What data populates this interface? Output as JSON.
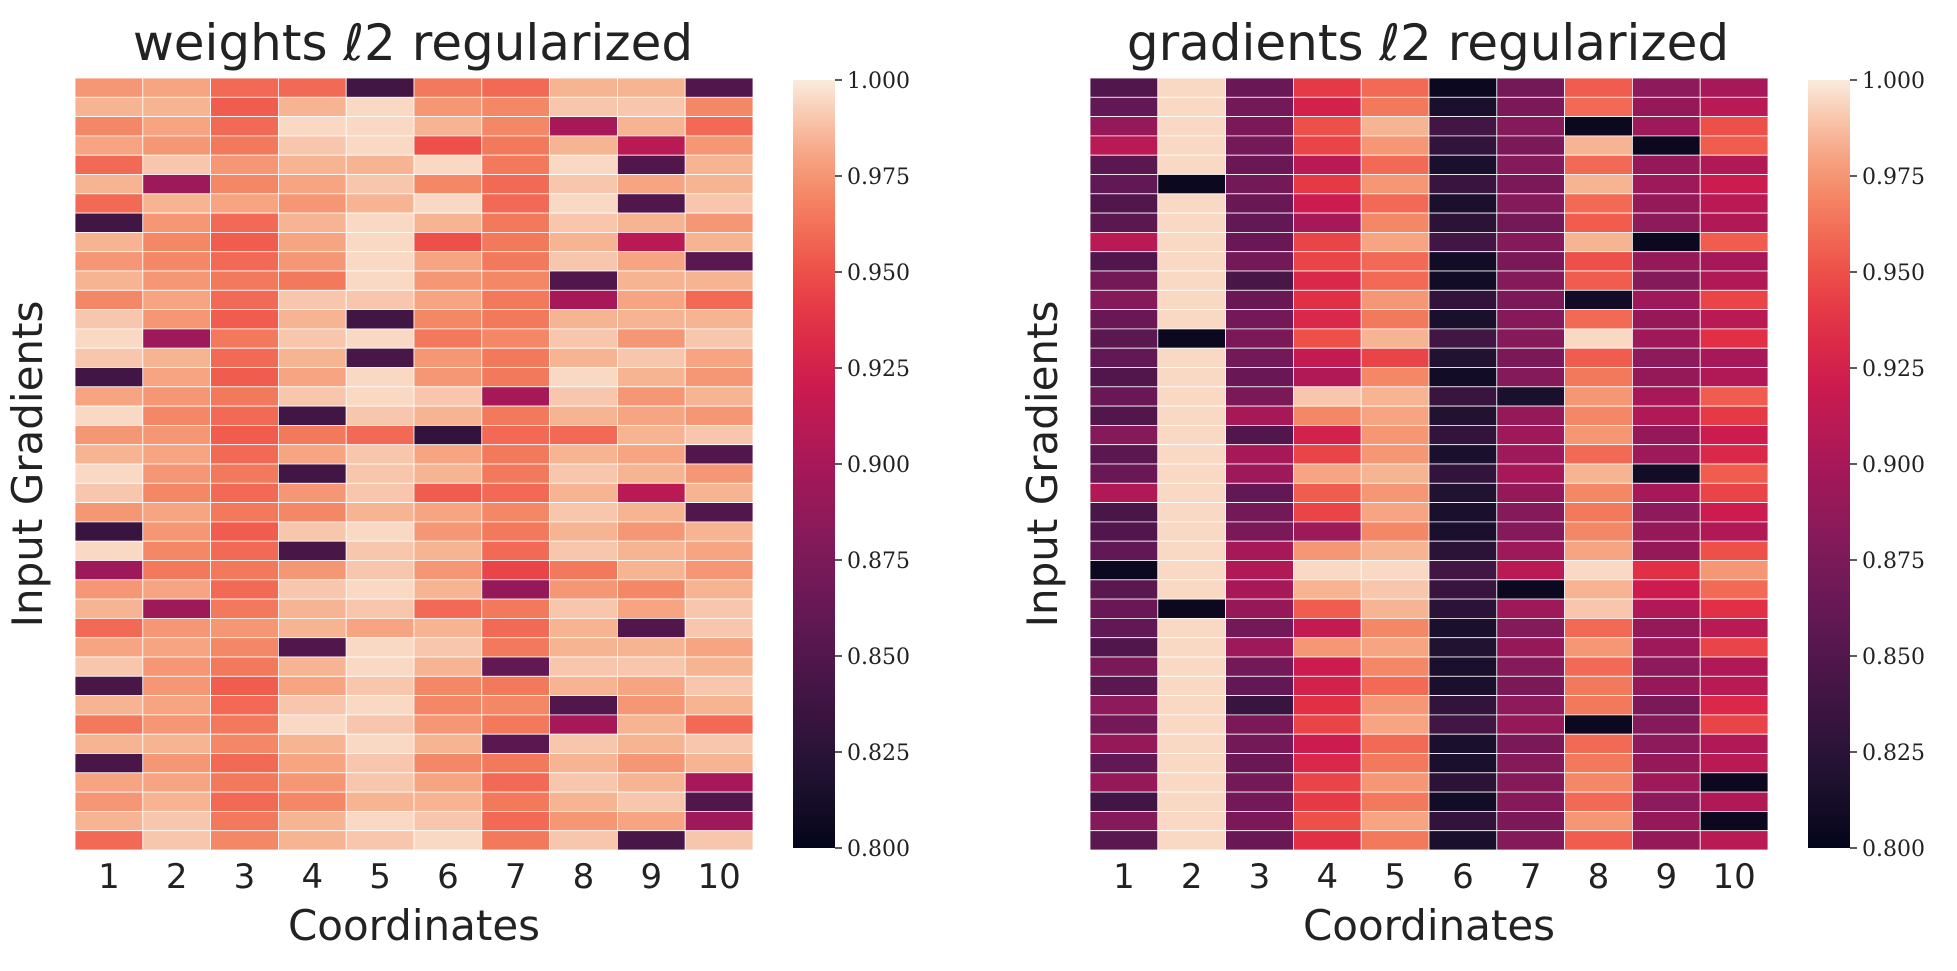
{
  "chart_data": [
    {
      "type": "heatmap",
      "title": "weights ℓ2 regularized",
      "xlabel": "Coordinates",
      "ylabel": "Input Gradients",
      "x_tick_labels": [
        "1",
        "2",
        "3",
        "4",
        "5",
        "6",
        "7",
        "8",
        "9",
        "10"
      ],
      "colorbar": {
        "min": 0.8,
        "max": 1.0,
        "tick_labels": [
          "1.000",
          "0.975",
          "0.950",
          "0.925",
          "0.900",
          "0.875",
          "0.850",
          "0.825",
          "0.800"
        ]
      },
      "colormap": "rocket",
      "values": [
        [
          0.975,
          0.98,
          0.96,
          0.96,
          0.84,
          0.965,
          0.96,
          0.985,
          0.985,
          0.85
        ],
        [
          0.985,
          0.985,
          0.955,
          0.985,
          0.995,
          0.975,
          0.97,
          0.99,
          0.99,
          0.97
        ],
        [
          0.97,
          0.98,
          0.96,
          0.995,
          0.995,
          0.985,
          0.97,
          0.9,
          0.985,
          0.96
        ],
        [
          0.98,
          0.975,
          0.965,
          0.99,
          0.995,
          0.95,
          0.965,
          0.985,
          0.91,
          0.975
        ],
        [
          0.96,
          0.99,
          0.975,
          0.985,
          0.985,
          0.995,
          0.965,
          0.995,
          0.85,
          0.985
        ],
        [
          0.985,
          0.895,
          0.97,
          0.98,
          0.99,
          0.97,
          0.96,
          0.99,
          0.98,
          0.985
        ],
        [
          0.96,
          0.985,
          0.98,
          0.975,
          0.985,
          0.995,
          0.96,
          0.995,
          0.85,
          0.99
        ],
        [
          0.84,
          0.975,
          0.96,
          0.985,
          0.995,
          0.985,
          0.965,
          0.99,
          0.985,
          0.975
        ],
        [
          0.985,
          0.97,
          0.955,
          0.98,
          0.995,
          0.95,
          0.965,
          0.985,
          0.91,
          0.985
        ],
        [
          0.975,
          0.97,
          0.96,
          0.975,
          0.995,
          0.98,
          0.965,
          0.99,
          0.98,
          0.855
        ],
        [
          0.985,
          0.975,
          0.965,
          0.965,
          0.995,
          0.975,
          0.97,
          0.85,
          0.985,
          0.985
        ],
        [
          0.97,
          0.98,
          0.96,
          0.99,
          0.99,
          0.98,
          0.965,
          0.9,
          0.98,
          0.96
        ],
        [
          0.99,
          0.975,
          0.955,
          0.985,
          0.84,
          0.97,
          0.965,
          0.985,
          0.985,
          0.985
        ],
        [
          0.995,
          0.895,
          0.965,
          0.99,
          0.995,
          0.965,
          0.97,
          0.99,
          0.975,
          0.99
        ],
        [
          0.99,
          0.985,
          0.96,
          0.985,
          0.845,
          0.975,
          0.965,
          0.985,
          0.99,
          0.98
        ],
        [
          0.84,
          0.98,
          0.955,
          0.98,
          0.995,
          0.975,
          0.965,
          0.995,
          0.985,
          0.975
        ],
        [
          0.98,
          0.975,
          0.965,
          0.99,
          0.995,
          0.99,
          0.9,
          0.99,
          0.975,
          0.985
        ],
        [
          0.995,
          0.97,
          0.96,
          0.84,
          0.99,
          0.985,
          0.965,
          0.985,
          0.98,
          0.975
        ],
        [
          0.975,
          0.975,
          0.955,
          0.965,
          0.96,
          0.83,
          0.96,
          0.96,
          0.985,
          0.99
        ],
        [
          0.985,
          0.98,
          0.96,
          0.98,
          0.99,
          0.98,
          0.965,
          0.985,
          0.98,
          0.85
        ],
        [
          0.995,
          0.975,
          0.965,
          0.84,
          0.99,
          0.985,
          0.965,
          0.99,
          0.985,
          0.975
        ],
        [
          0.99,
          0.97,
          0.96,
          0.975,
          0.99,
          0.955,
          0.96,
          0.985,
          0.91,
          0.985
        ],
        [
          0.975,
          0.98,
          0.965,
          0.97,
          0.985,
          0.98,
          0.97,
          0.99,
          0.985,
          0.85
        ],
        [
          0.835,
          0.975,
          0.955,
          0.99,
          0.995,
          0.975,
          0.965,
          0.985,
          0.975,
          0.985
        ],
        [
          0.995,
          0.97,
          0.96,
          0.845,
          0.99,
          0.985,
          0.96,
          0.99,
          0.985,
          0.98
        ],
        [
          0.895,
          0.965,
          0.965,
          0.975,
          0.99,
          0.975,
          0.945,
          0.965,
          0.985,
          0.975
        ],
        [
          0.975,
          0.98,
          0.96,
          0.99,
          0.995,
          0.985,
          0.89,
          0.975,
          0.97,
          0.985
        ],
        [
          0.985,
          0.895,
          0.965,
          0.985,
          0.99,
          0.96,
          0.965,
          0.99,
          0.98,
          0.99
        ],
        [
          0.96,
          0.975,
          0.975,
          0.985,
          0.98,
          0.985,
          0.96,
          0.985,
          0.85,
          0.99
        ],
        [
          0.98,
          0.98,
          0.97,
          0.85,
          0.995,
          0.99,
          0.965,
          0.985,
          0.985,
          0.98
        ],
        [
          0.99,
          0.975,
          0.965,
          0.985,
          0.995,
          0.985,
          0.86,
          0.99,
          0.99,
          0.985
        ],
        [
          0.845,
          0.975,
          0.955,
          0.98,
          0.99,
          0.97,
          0.965,
          0.985,
          0.98,
          0.99
        ],
        [
          0.985,
          0.98,
          0.96,
          0.99,
          0.995,
          0.97,
          0.97,
          0.85,
          0.975,
          0.985
        ],
        [
          0.965,
          0.975,
          0.965,
          0.995,
          0.99,
          0.975,
          0.965,
          0.9,
          0.985,
          0.96
        ],
        [
          0.985,
          0.985,
          0.97,
          0.985,
          0.995,
          0.985,
          0.855,
          0.99,
          0.985,
          0.99
        ],
        [
          0.845,
          0.975,
          0.96,
          0.98,
          0.99,
          0.97,
          0.965,
          0.985,
          0.975,
          0.985
        ],
        [
          0.98,
          0.98,
          0.965,
          0.975,
          0.99,
          0.98,
          0.96,
          0.99,
          0.985,
          0.9
        ],
        [
          0.975,
          0.985,
          0.96,
          0.97,
          0.985,
          0.985,
          0.965,
          0.985,
          0.99,
          0.85
        ],
        [
          0.985,
          0.99,
          0.965,
          0.985,
          0.995,
          0.99,
          0.96,
          0.975,
          0.98,
          0.895
        ],
        [
          0.96,
          0.99,
          0.97,
          0.985,
          0.99,
          0.995,
          0.965,
          0.99,
          0.845,
          0.99
        ]
      ]
    },
    {
      "type": "heatmap",
      "title": "gradients ℓ2 regularized",
      "xlabel": "Coordinates",
      "ylabel": "Input Gradients",
      "x_tick_labels": [
        "1",
        "2",
        "3",
        "4",
        "5",
        "6",
        "7",
        "8",
        "9",
        "10"
      ],
      "colorbar": {
        "min": 0.8,
        "max": 1.0,
        "tick_labels": [
          "1.000",
          "0.975",
          "0.950",
          "0.925",
          "0.900",
          "0.875",
          "0.850",
          "0.825",
          "0.800"
        ]
      },
      "colormap": "rocket",
      "values": [
        [
          0.85,
          0.995,
          0.865,
          0.94,
          0.96,
          0.805,
          0.87,
          0.955,
          0.885,
          0.9
        ],
        [
          0.86,
          0.995,
          0.87,
          0.925,
          0.965,
          0.815,
          0.875,
          0.96,
          0.89,
          0.91
        ],
        [
          0.89,
          0.995,
          0.875,
          0.95,
          0.985,
          0.84,
          0.88,
          0.805,
          0.895,
          0.95
        ],
        [
          0.91,
          0.995,
          0.87,
          0.945,
          0.975,
          0.83,
          0.875,
          0.985,
          0.805,
          0.955
        ],
        [
          0.855,
          0.995,
          0.865,
          0.91,
          0.96,
          0.815,
          0.88,
          0.96,
          0.89,
          0.905
        ],
        [
          0.86,
          0.805,
          0.87,
          0.94,
          0.975,
          0.835,
          0.875,
          0.985,
          0.895,
          0.92
        ],
        [
          0.85,
          0.995,
          0.865,
          0.92,
          0.96,
          0.815,
          0.88,
          0.96,
          0.89,
          0.91
        ],
        [
          0.855,
          0.995,
          0.86,
          0.9,
          0.97,
          0.825,
          0.87,
          0.955,
          0.885,
          0.905
        ],
        [
          0.91,
          0.995,
          0.865,
          0.945,
          0.98,
          0.84,
          0.88,
          0.985,
          0.805,
          0.955
        ],
        [
          0.85,
          0.995,
          0.87,
          0.945,
          0.96,
          0.81,
          0.875,
          0.95,
          0.89,
          0.9
        ],
        [
          0.87,
          0.995,
          0.845,
          0.93,
          0.96,
          0.81,
          0.88,
          0.955,
          0.88,
          0.905
        ],
        [
          0.88,
          0.995,
          0.865,
          0.935,
          0.975,
          0.83,
          0.875,
          0.81,
          0.895,
          0.945
        ],
        [
          0.865,
          0.995,
          0.87,
          0.93,
          0.965,
          0.815,
          0.88,
          0.96,
          0.89,
          0.91
        ],
        [
          0.855,
          0.805,
          0.875,
          0.95,
          0.985,
          0.84,
          0.88,
          0.995,
          0.895,
          0.935
        ],
        [
          0.86,
          0.995,
          0.87,
          0.915,
          0.945,
          0.82,
          0.875,
          0.955,
          0.885,
          0.9
        ],
        [
          0.85,
          0.995,
          0.865,
          0.905,
          0.97,
          0.81,
          0.88,
          0.965,
          0.89,
          0.905
        ],
        [
          0.865,
          0.995,
          0.875,
          0.99,
          0.985,
          0.835,
          0.815,
          0.975,
          0.9,
          0.955
        ],
        [
          0.85,
          0.995,
          0.9,
          0.97,
          0.98,
          0.82,
          0.89,
          0.97,
          0.905,
          0.94
        ],
        [
          0.88,
          0.995,
          0.85,
          0.925,
          0.975,
          0.83,
          0.895,
          0.975,
          0.89,
          0.92
        ],
        [
          0.855,
          0.995,
          0.9,
          0.945,
          0.975,
          0.815,
          0.895,
          0.96,
          0.895,
          0.93
        ],
        [
          0.865,
          0.995,
          0.895,
          0.98,
          0.985,
          0.83,
          0.9,
          0.985,
          0.81,
          0.955
        ],
        [
          0.905,
          0.995,
          0.86,
          0.955,
          0.975,
          0.82,
          0.89,
          0.97,
          0.9,
          0.945
        ],
        [
          0.845,
          0.995,
          0.87,
          0.945,
          0.98,
          0.815,
          0.88,
          0.965,
          0.885,
          0.92
        ],
        [
          0.85,
          0.995,
          0.875,
          0.895,
          0.97,
          0.815,
          0.88,
          0.97,
          0.89,
          0.905
        ],
        [
          0.86,
          0.995,
          0.9,
          0.975,
          0.985,
          0.825,
          0.895,
          0.98,
          0.89,
          0.95
        ],
        [
          0.805,
          0.995,
          0.905,
          0.995,
          0.995,
          0.84,
          0.91,
          0.995,
          0.935,
          0.975
        ],
        [
          0.855,
          0.995,
          0.9,
          0.985,
          0.99,
          0.835,
          0.805,
          0.985,
          0.92,
          0.96
        ],
        [
          0.865,
          0.805,
          0.89,
          0.955,
          0.985,
          0.825,
          0.895,
          0.99,
          0.905,
          0.935
        ],
        [
          0.86,
          0.995,
          0.87,
          0.915,
          0.97,
          0.815,
          0.88,
          0.96,
          0.89,
          0.91
        ],
        [
          0.85,
          0.995,
          0.895,
          0.975,
          0.98,
          0.82,
          0.89,
          0.975,
          0.895,
          0.945
        ],
        [
          0.875,
          0.995,
          0.87,
          0.92,
          0.97,
          0.815,
          0.88,
          0.96,
          0.885,
          0.905
        ],
        [
          0.855,
          0.995,
          0.86,
          0.925,
          0.96,
          0.815,
          0.875,
          0.965,
          0.89,
          0.91
        ],
        [
          0.885,
          0.995,
          0.835,
          0.935,
          0.975,
          0.83,
          0.885,
          0.965,
          0.875,
          0.93
        ],
        [
          0.87,
          0.995,
          0.875,
          0.945,
          0.98,
          0.84,
          0.89,
          0.805,
          0.88,
          0.945
        ],
        [
          0.89,
          0.995,
          0.87,
          0.92,
          0.96,
          0.815,
          0.875,
          0.96,
          0.885,
          0.905
        ],
        [
          0.86,
          0.995,
          0.865,
          0.93,
          0.965,
          0.815,
          0.88,
          0.965,
          0.89,
          0.91
        ],
        [
          0.89,
          0.995,
          0.87,
          0.945,
          0.975,
          0.825,
          0.88,
          0.97,
          0.895,
          0.805
        ],
        [
          0.84,
          0.995,
          0.87,
          0.94,
          0.965,
          0.81,
          0.88,
          0.96,
          0.885,
          0.905
        ],
        [
          0.88,
          0.995,
          0.875,
          0.95,
          0.98,
          0.83,
          0.875,
          0.975,
          0.89,
          0.805
        ],
        [
          0.855,
          0.995,
          0.865,
          0.935,
          0.965,
          0.815,
          0.88,
          0.955,
          0.89,
          0.91
        ]
      ]
    }
  ]
}
